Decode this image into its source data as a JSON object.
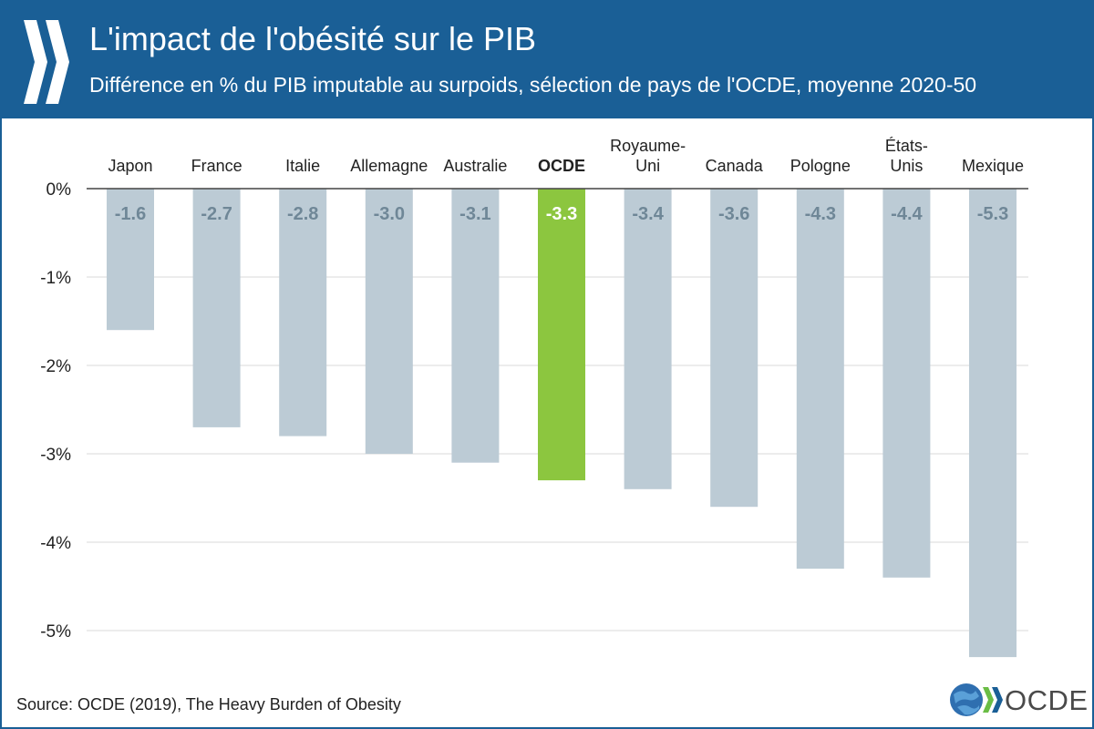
{
  "header": {
    "title": "L'impact de l'obésité sur le PIB",
    "subtitle": "Différence en % du PIB imputable au surpoids, sélection de pays de l'OCDE, moyenne 2020-50"
  },
  "footer": {
    "source": "Source: OCDE (2019), The Heavy Burden of Obesity",
    "logo_text": "OCDE"
  },
  "colors": {
    "header_bg": "#1a5f96",
    "bar": "#bccbd5",
    "bar_highlight": "#8cc63f",
    "value_label": "#6f8797",
    "value_label_highlight": "#ffffff",
    "grid": "#d9d9d9",
    "axis": "#444444",
    "logo_green": "#6abd45",
    "logo_blue": "#1a5f96"
  },
  "chart_data": {
    "type": "bar",
    "title": "L'impact de l'obésité sur le PIB",
    "subtitle": "Différence en % du PIB imputable au surpoids, sélection de pays de l'OCDE, moyenne 2020-50",
    "categories": [
      [
        "Japon"
      ],
      [
        "France"
      ],
      [
        "Italie"
      ],
      [
        "Allemagne"
      ],
      [
        "Australie"
      ],
      [
        "OCDE"
      ],
      [
        "Royaume-",
        "Uni"
      ],
      [
        "Canada"
      ],
      [
        "Pologne"
      ],
      [
        "États-",
        "Unis"
      ],
      [
        "Mexique"
      ]
    ],
    "values": [
      -1.6,
      -2.7,
      -2.8,
      -3.0,
      -3.1,
      -3.3,
      -3.4,
      -3.6,
      -4.3,
      -4.4,
      -5.3
    ],
    "value_labels": [
      "-1.6",
      "-2.7",
      "-2.8",
      "-3.0",
      "-3.1",
      "-3.3",
      "-3.4",
      "-3.6",
      "-4.3",
      "-4.4",
      "-5.3"
    ],
    "highlight_index": 5,
    "y_ticks": [
      0,
      -1,
      -2,
      -3,
      -4,
      -5
    ],
    "y_tick_labels": [
      "0%",
      "-1%",
      "-2%",
      "-3%",
      "-4%",
      "-5%"
    ],
    "ylim": [
      -5.3,
      0
    ],
    "xlabel": "",
    "ylabel": "",
    "grid": true,
    "legend": "none",
    "category_axis_position": "top"
  }
}
